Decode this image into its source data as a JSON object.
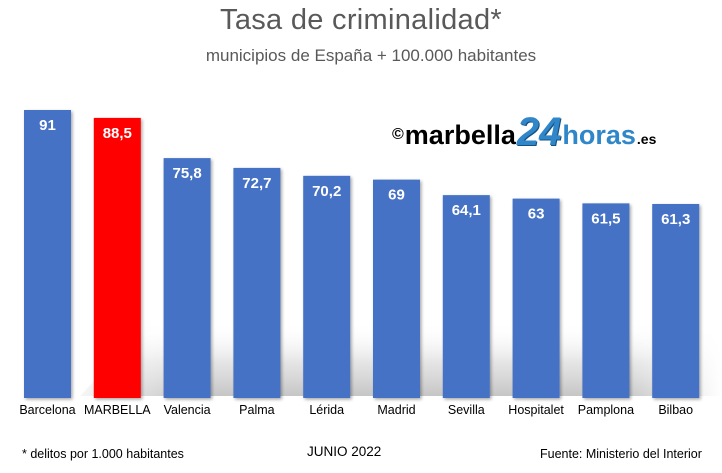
{
  "title": "Tasa de criminalidad*",
  "subtitle": "municipios de España + 100.000 habitantes",
  "watermark": {
    "copyright": "©",
    "part1": "marbella",
    "part2": "24",
    "part3": "horas",
    "part4": ".es"
  },
  "footer": {
    "note": "* delitos por 1.000 habitantes",
    "date": "JUNIO 2022",
    "source": "Fuente: Ministerio del Interior"
  },
  "colors": {
    "bar": "#4472c4",
    "highlight": "#ff0000",
    "label": "#ffffff"
  },
  "chart_data": {
    "type": "bar",
    "categories": [
      "Barcelona",
      "MARBELLA",
      "Valencia",
      "Palma",
      "Lérida",
      "Madrid",
      "Sevilla",
      "Hospitalet",
      "Pamplona",
      "Bilbao"
    ],
    "values": [
      91,
      88.5,
      75.8,
      72.7,
      70.2,
      69,
      64.1,
      63,
      61.5,
      61.3
    ],
    "value_labels": [
      "91",
      "88,5",
      "75,8",
      "72,7",
      "70,2",
      "69",
      "64,1",
      "63",
      "61,5",
      "61,3"
    ],
    "highlight_index": 1,
    "title": "Tasa de criminalidad*",
    "subtitle": "municipios de España + 100.000 habitantes",
    "xlabel": "",
    "ylabel": "",
    "ylim": [
      0,
      91
    ],
    "grid": false,
    "legend": "none"
  }
}
